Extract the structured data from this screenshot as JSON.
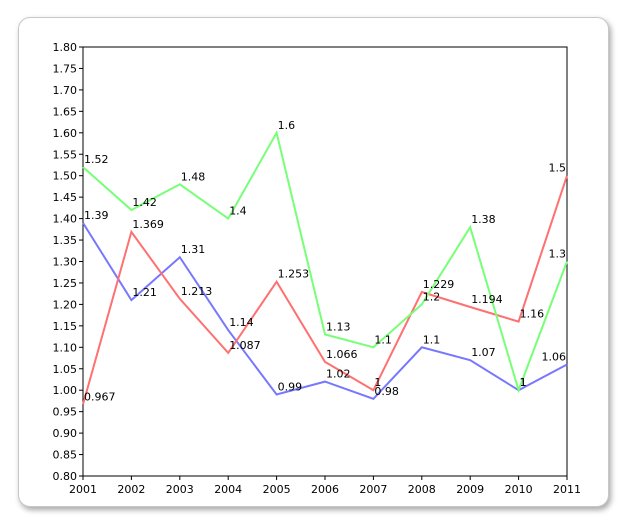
{
  "chart_data": {
    "type": "line",
    "title": "",
    "xlabel": "",
    "ylabel": "",
    "x": [
      2001,
      2002,
      2003,
      2004,
      2005,
      2006,
      2007,
      2008,
      2009,
      2010,
      2011
    ],
    "ylim": [
      0.8,
      1.8
    ],
    "yticks": [
      "0.80",
      "0.85",
      "0.90",
      "0.95",
      "1.00",
      "1.05",
      "1.10",
      "1.15",
      "1.20",
      "1.25",
      "1.30",
      "1.35",
      "1.40",
      "1.45",
      "1.50",
      "1.55",
      "1.60",
      "1.65",
      "1.70",
      "1.75",
      "1.80"
    ],
    "grid": false,
    "legend": "none",
    "series": [
      {
        "color": "#7777ff",
        "values": [
          1.39,
          1.21,
          1.31,
          1.14,
          0.99,
          1.02,
          0.98,
          1.1,
          1.07,
          1.0,
          1.06
        ],
        "labels": [
          "1.39",
          "1.21",
          "1.31",
          "1.14",
          "0.99",
          "1.02",
          "0.98",
          "1.1",
          "1.07",
          "1",
          "1.06"
        ]
      },
      {
        "color": "#ff7070",
        "values": [
          0.967,
          1.369,
          1.213,
          1.087,
          1.253,
          1.066,
          1.0,
          1.229,
          1.194,
          1.16,
          1.5
        ],
        "labels": [
          "0.967",
          "1.369",
          "1.213",
          "1.087",
          "1.253",
          "1.066",
          "1",
          "1.229",
          "1.194",
          "1.16",
          "1.5"
        ]
      },
      {
        "color": "#77ff77",
        "values": [
          1.52,
          1.42,
          1.48,
          1.4,
          1.6,
          1.13,
          1.1,
          1.2,
          1.38,
          1.0,
          1.3
        ],
        "labels": [
          "1.52",
          "1.42",
          "1.48",
          "1.4",
          "1.6",
          "1.13",
          "1.1",
          "1.2",
          "1.38",
          "1",
          "1.3"
        ]
      }
    ]
  }
}
